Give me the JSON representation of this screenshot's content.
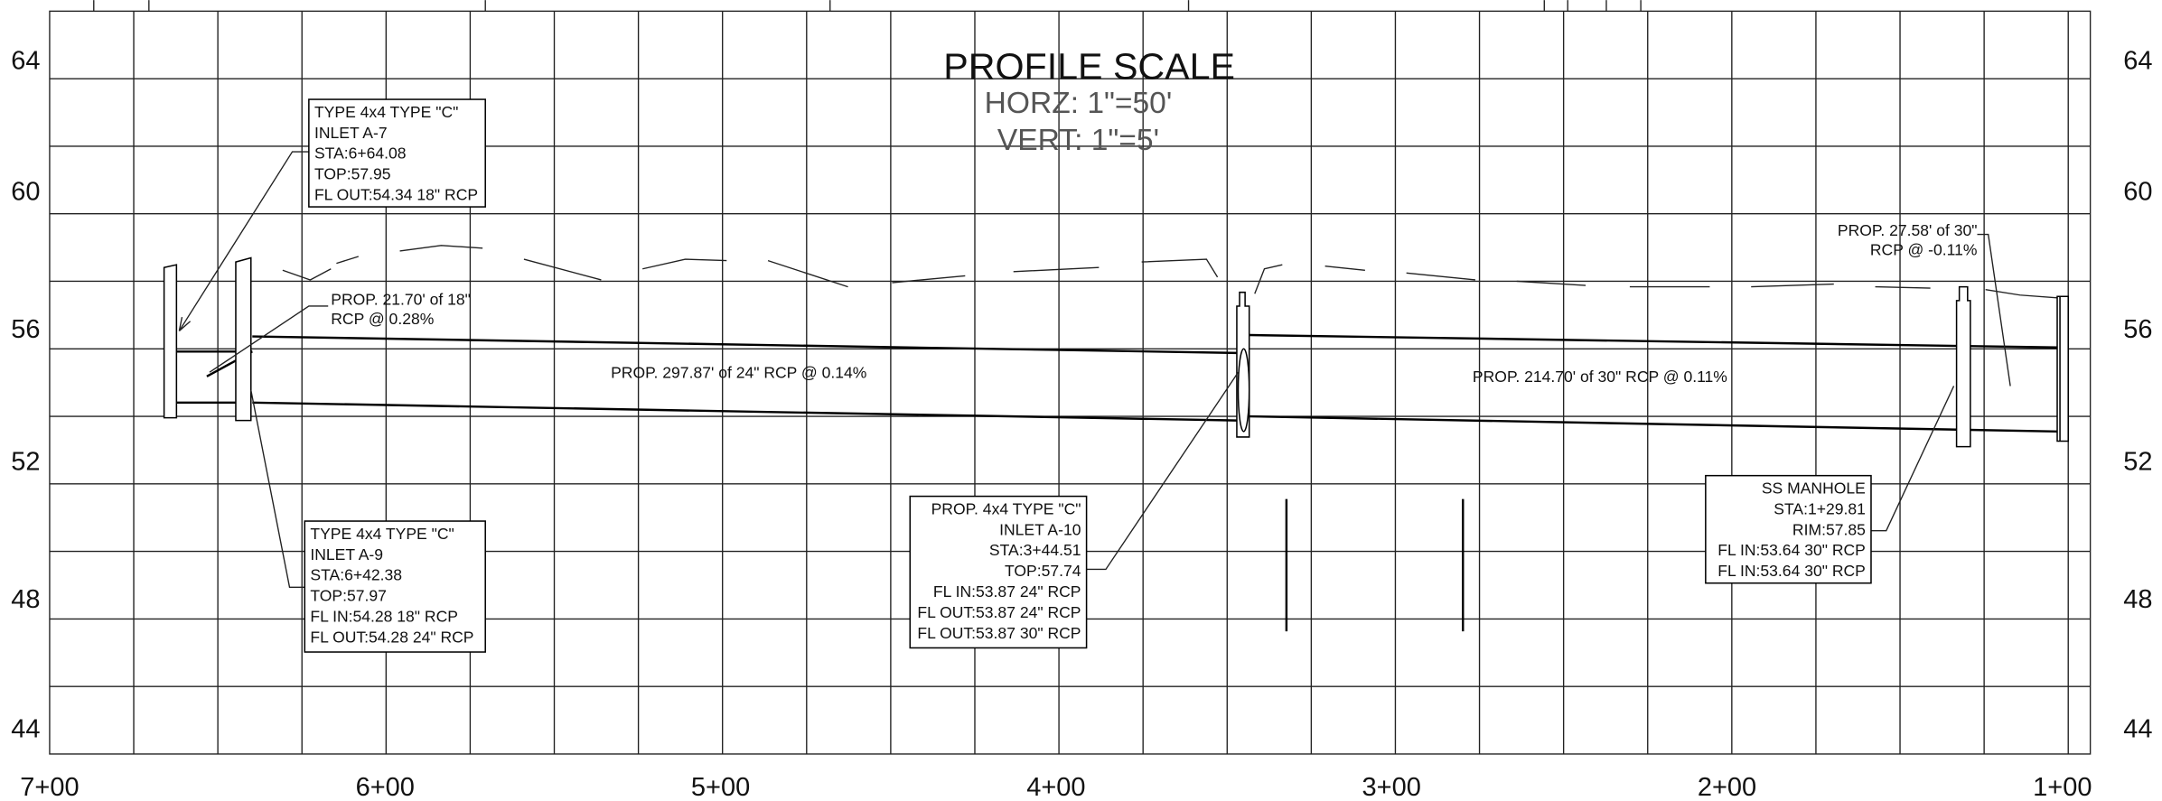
{
  "elevations_left": [
    "64",
    "60",
    "56",
    "52",
    "48",
    "44"
  ],
  "elevations_right": [
    "64",
    "60",
    "56",
    "52",
    "48",
    "44"
  ],
  "stations": [
    "7+00",
    "6+00",
    "5+00",
    "4+00",
    "3+00",
    "2+00",
    "1+00"
  ],
  "title": {
    "main": "PROFILE SCALE",
    "horz": "HORZ:  1\"=50'",
    "vert": "VERT:  1\"=5'"
  },
  "callouts": [
    {
      "lines": [
        "TYPE 4x4 TYPE \"C\"",
        "INLET A-7",
        "STA:6+64.08",
        "TOP:57.95",
        "FL OUT:54.34 18\" RCP"
      ]
    },
    {
      "lines": [
        "TYPE 4x4 TYPE \"C\"",
        "INLET A-9",
        "STA:6+42.38",
        "TOP:57.97",
        "FL IN:54.28 18\" RCP",
        "FL OUT:54.28 24\" RCP"
      ]
    },
    {
      "lines": [
        "PROP. 4x4 TYPE \"C\"",
        "INLET A-10",
        "STA:3+44.51",
        "TOP:57.74",
        "FL IN:53.87 24\" RCP",
        "FL OUT:53.87 24\" RCP",
        "FL OUT:53.87 30\" RCP"
      ]
    },
    {
      "lines": [
        "SS MANHOLE",
        "STA:1+29.81",
        "RIM:57.85",
        "FL IN:53.64 30\" RCP",
        "FL IN:53.64 30\" RCP"
      ]
    }
  ],
  "pipe_labels": [
    {
      "lines": [
        "PROP. 21.70' of 18\"",
        "RCP @ 0.28%"
      ]
    },
    {
      "lines": [
        "PROP. 297.87' of 24\" RCP @ 0.14%"
      ]
    },
    {
      "lines": [
        "PROP. 214.70' of 30\" RCP @ 0.11%"
      ]
    },
    {
      "lines": [
        "PROP. 27.58' of 30\"",
        "RCP @ -0.11%"
      ]
    }
  ]
}
